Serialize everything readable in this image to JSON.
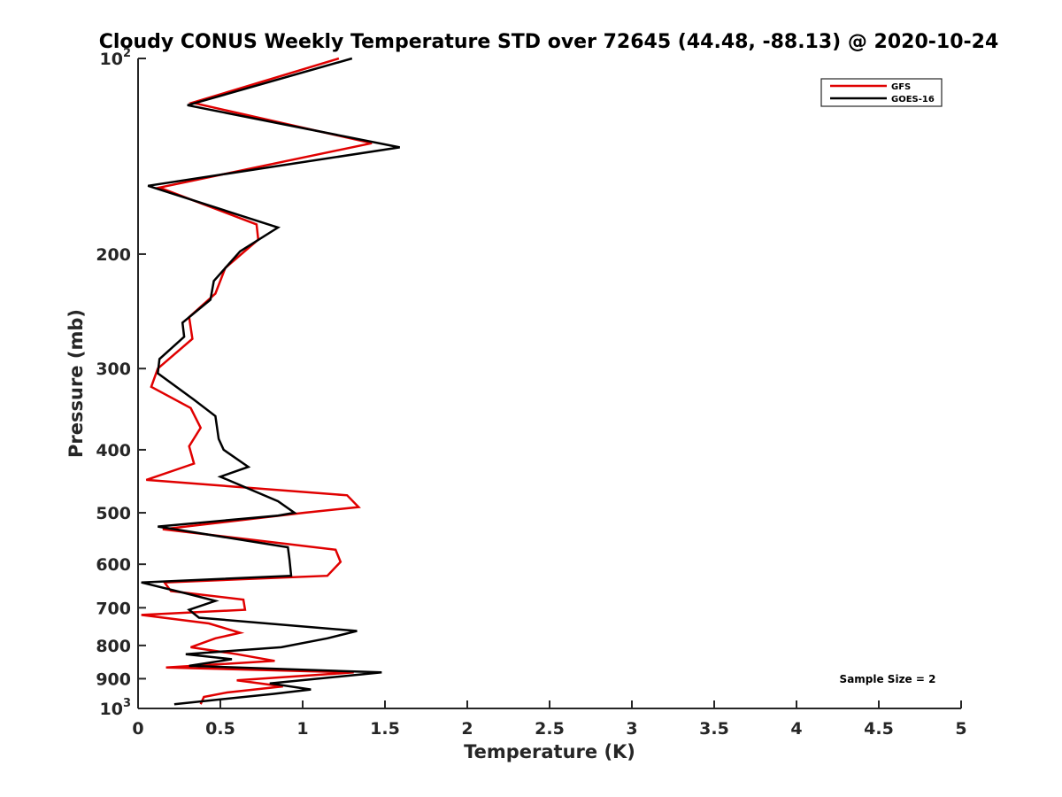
{
  "chart_data": {
    "type": "line",
    "title": "Cloudy CONUS Weekly Temperature STD over 72645 (44.48, -88.13) @ 2020-10-24",
    "xlabel": "Temperature (K)",
    "ylabel": "Pressure (mb)",
    "xlim": [
      0,
      5
    ],
    "ylim": [
      100,
      1000
    ],
    "y_scale": "log",
    "y_reversed": true,
    "grid": false,
    "legend_position": "top-right",
    "annotation": "Sample Size = 2",
    "x_ticks": [
      "0",
      "0.5",
      "1",
      "1.5",
      "2",
      "2.5",
      "3",
      "3.5",
      "4",
      "4.5",
      "5"
    ],
    "y_ticks": [
      {
        "value": 100,
        "base": "10",
        "exp": "2"
      },
      {
        "value": 200,
        "label": "200"
      },
      {
        "value": 300,
        "label": "300"
      },
      {
        "value": 400,
        "label": "400"
      },
      {
        "value": 500,
        "label": "500"
      },
      {
        "value": 600,
        "label": "600"
      },
      {
        "value": 700,
        "label": "700"
      },
      {
        "value": 800,
        "label": "800"
      },
      {
        "value": 900,
        "label": "900"
      },
      {
        "value": 1000,
        "base": "10",
        "exp": "3"
      }
    ],
    "series": [
      {
        "name": "GFS",
        "color": "#e00000",
        "points": [
          [
            1.22,
            100
          ],
          [
            0.33,
            117
          ],
          [
            1.42,
            135
          ],
          [
            0.13,
            158
          ],
          [
            0.72,
            180
          ],
          [
            0.73,
            190
          ],
          [
            0.53,
            210
          ],
          [
            0.47,
            230
          ],
          [
            0.31,
            250
          ],
          [
            0.33,
            270
          ],
          [
            0.12,
            300
          ],
          [
            0.08,
            320
          ],
          [
            0.32,
            345
          ],
          [
            0.38,
            370
          ],
          [
            0.31,
            395
          ],
          [
            0.34,
            420
          ],
          [
            0.05,
            445
          ],
          [
            1.27,
            470
          ],
          [
            1.34,
            490
          ],
          [
            1.01,
            500
          ],
          [
            0.15,
            530
          ],
          [
            1.2,
            570
          ],
          [
            1.23,
            595
          ],
          [
            1.15,
            625
          ],
          [
            0.16,
            640
          ],
          [
            0.2,
            660
          ],
          [
            0.64,
            680
          ],
          [
            0.65,
            705
          ],
          [
            0.02,
            718
          ],
          [
            0.43,
            740
          ],
          [
            0.62,
            765
          ],
          [
            0.47,
            780
          ],
          [
            0.32,
            805
          ],
          [
            0.6,
            825
          ],
          [
            0.83,
            845
          ],
          [
            0.17,
            865
          ],
          [
            1.31,
            880
          ],
          [
            0.6,
            905
          ],
          [
            0.88,
            925
          ],
          [
            0.54,
            945
          ],
          [
            0.4,
            960
          ],
          [
            0.38,
            985
          ]
        ]
      },
      {
        "name": "GOES-16",
        "color": "#000000",
        "points": [
          [
            1.3,
            100
          ],
          [
            0.3,
            118
          ],
          [
            1.59,
            137
          ],
          [
            0.06,
            157
          ],
          [
            0.85,
            182
          ],
          [
            0.62,
            198
          ],
          [
            0.46,
            220
          ],
          [
            0.44,
            235
          ],
          [
            0.27,
            255
          ],
          [
            0.28,
            268
          ],
          [
            0.13,
            290
          ],
          [
            0.12,
            305
          ],
          [
            0.34,
            335
          ],
          [
            0.47,
            355
          ],
          [
            0.49,
            385
          ],
          [
            0.52,
            400
          ],
          [
            0.67,
            425
          ],
          [
            0.5,
            440
          ],
          [
            0.85,
            480
          ],
          [
            0.95,
            500
          ],
          [
            0.85,
            505
          ],
          [
            0.12,
            525
          ],
          [
            0.91,
            565
          ],
          [
            0.92,
            590
          ],
          [
            0.93,
            625
          ],
          [
            0.02,
            640
          ],
          [
            0.29,
            665
          ],
          [
            0.47,
            683
          ],
          [
            0.31,
            705
          ],
          [
            0.37,
            725
          ],
          [
            1.33,
            760
          ],
          [
            1.15,
            780
          ],
          [
            0.87,
            805
          ],
          [
            0.29,
            825
          ],
          [
            0.57,
            840
          ],
          [
            0.31,
            860
          ],
          [
            1.48,
            880
          ],
          [
            0.8,
            915
          ],
          [
            1.05,
            935
          ],
          [
            0.82,
            950
          ],
          [
            0.22,
            985
          ]
        ]
      }
    ]
  }
}
